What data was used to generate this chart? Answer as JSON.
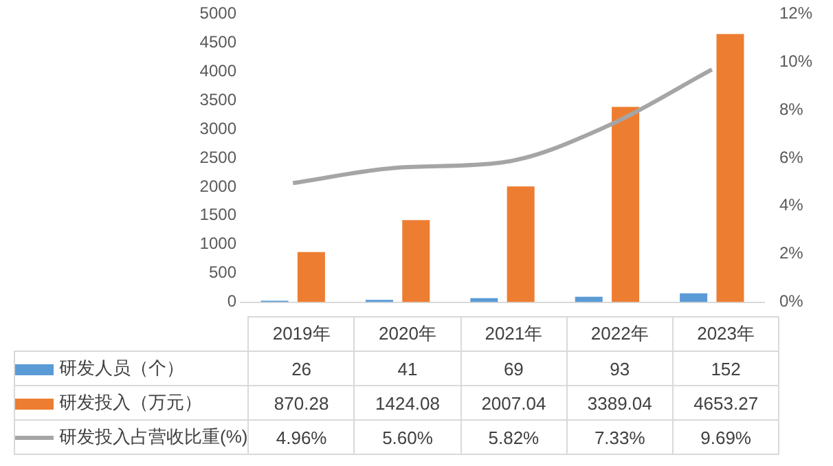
{
  "chart_data": {
    "type": "bar",
    "categories": [
      "2019年",
      "2020年",
      "2021年",
      "2022年",
      "2023年"
    ],
    "series": [
      {
        "name": "研发人员（个）",
        "color": "#5b9bd5",
        "values": [
          26,
          41,
          69,
          93,
          152
        ]
      },
      {
        "name": "研发投入（万元）",
        "color": "#ed7d31",
        "values": [
          870.28,
          1424.08,
          2007.04,
          3389.04,
          4653.27
        ]
      },
      {
        "name": "研发投入占营收比重(%)",
        "color": "#a5a5a5",
        "type": "line",
        "axis": "y2",
        "values": [
          4.96,
          5.6,
          5.82,
          7.33,
          9.69
        ]
      }
    ],
    "ylim": [
      0,
      5000
    ],
    "yticks": [
      0,
      500,
      1000,
      1500,
      2000,
      2500,
      3000,
      3500,
      4000,
      4500,
      5000
    ],
    "y2lim": [
      0,
      12
    ],
    "y2ticks": [
      {
        "value": 0,
        "label": "0%"
      },
      {
        "value": 2,
        "label": "2%"
      },
      {
        "value": 4,
        "label": "4%"
      },
      {
        "value": 6,
        "label": "6%"
      },
      {
        "value": 8,
        "label": "8%"
      },
      {
        "value": 10,
        "label": "10%"
      },
      {
        "value": 12,
        "label": "12%"
      }
    ],
    "value_labels": [
      [
        "26",
        "41",
        "69",
        "93",
        "152"
      ],
      [
        "870.28",
        "1424.08",
        "2007.04",
        "3389.04",
        "4653.27"
      ],
      [
        "4.96%",
        "5.60%",
        "5.82%",
        "7.33%",
        "9.69%"
      ]
    ],
    "legend": "bottom",
    "grid": false,
    "marker": "none"
  }
}
